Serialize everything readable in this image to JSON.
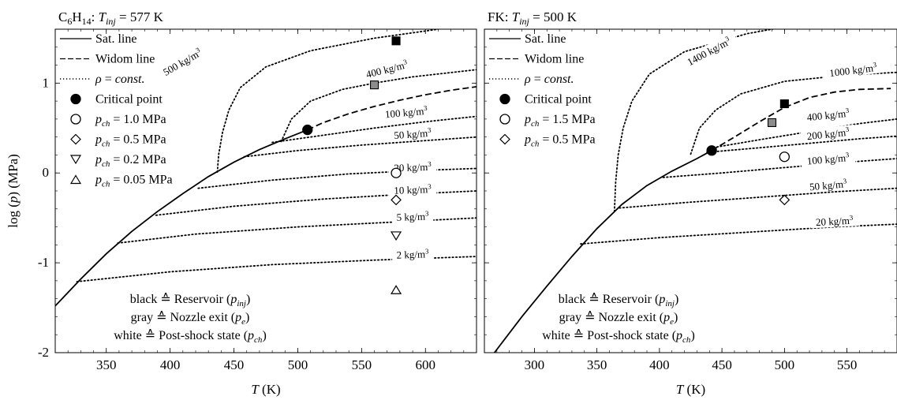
{
  "chart_data": [
    {
      "type": "line",
      "title": "C6H14: Tinj = 577 K",
      "title_parts": {
        "species": "C",
        "sub1": "6",
        "mid": "H",
        "sub2": "14",
        "sep": ": ",
        "var": "T",
        "var_sub": "inj",
        "eq": " = 577 K"
      },
      "xlabel": "T (K)",
      "ylabel": "log (p) (MPa)",
      "xlim": [
        310,
        640
      ],
      "ylim": [
        -2,
        1.6
      ],
      "xticks": [
        "350",
        "400",
        "450",
        "500",
        "550",
        "600"
      ],
      "yticks": [
        "-2",
        "-1",
        "0",
        "1"
      ],
      "legend": [
        "Sat. line",
        "Widom line",
        "ρ = const.",
        "Critical point",
        "pch = 1.0 MPa",
        "pch = 0.5 MPa",
        "pch = 0.2 MPa",
        "pch = 0.05 MPa"
      ],
      "legend_position": "top-left",
      "sat_line": [
        [
          310,
          -1.48
        ],
        [
          330,
          -1.18
        ],
        [
          350,
          -0.9
        ],
        [
          370,
          -0.65
        ],
        [
          390,
          -0.43
        ],
        [
          410,
          -0.23
        ],
        [
          430,
          -0.04
        ],
        [
          450,
          0.12
        ],
        [
          470,
          0.26
        ],
        [
          490,
          0.38
        ],
        [
          507.6,
          0.48
        ]
      ],
      "widom_line": [
        [
          507.6,
          0.48
        ],
        [
          520,
          0.56
        ],
        [
          540,
          0.66
        ],
        [
          560,
          0.74
        ],
        [
          580,
          0.81
        ],
        [
          600,
          0.87
        ],
        [
          620,
          0.92
        ],
        [
          640,
          0.96
        ]
      ],
      "isochores": [
        {
          "label": "500 kg/m3",
          "points": [
            [
              437,
              0.01
            ],
            [
              438,
              0.2
            ],
            [
              441,
              0.45
            ],
            [
              446,
              0.7
            ],
            [
              455,
              0.95
            ],
            [
              475,
              1.18
            ],
            [
              510,
              1.36
            ],
            [
              560,
              1.5
            ],
            [
              610,
              1.6
            ]
          ]
        },
        {
          "label": "400 kg/m3",
          "points": [
            [
              487,
              0.35
            ],
            [
              495,
              0.6
            ],
            [
              510,
              0.8
            ],
            [
              535,
              0.93
            ],
            [
              560,
              1.0
            ],
            [
              590,
              1.07
            ],
            [
              640,
              1.15
            ]
          ]
        },
        {
          "label": "100 kg/m3",
          "points": [
            [
              480,
              0.34
            ],
            [
              520,
              0.42
            ],
            [
              560,
              0.5
            ],
            [
              600,
              0.57
            ],
            [
              640,
              0.63
            ]
          ]
        },
        {
          "label": "50 kg/m3",
          "points": [
            [
              458,
              0.18
            ],
            [
              500,
              0.25
            ],
            [
              550,
              0.31
            ],
            [
              600,
              0.36
            ],
            [
              640,
              0.4
            ]
          ]
        },
        {
          "label": "20 kg/m3",
          "points": [
            [
              422,
              -0.17
            ],
            [
              480,
              -0.08
            ],
            [
              540,
              -0.01
            ],
            [
              600,
              0.03
            ],
            [
              640,
              0.05
            ]
          ]
        },
        {
          "label": "10 kg/m3",
          "points": [
            [
              389,
              -0.47
            ],
            [
              450,
              -0.37
            ],
            [
              520,
              -0.29
            ],
            [
              580,
              -0.24
            ],
            [
              640,
              -0.2
            ]
          ]
        },
        {
          "label": "5 kg/m3",
          "points": [
            [
              359,
              -0.78
            ],
            [
              420,
              -0.68
            ],
            [
              500,
              -0.6
            ],
            [
              570,
              -0.55
            ],
            [
              640,
              -0.5
            ]
          ]
        },
        {
          "label": "2 kg/m3",
          "points": [
            [
              327,
              -1.21
            ],
            [
              400,
              -1.1
            ],
            [
              480,
              -1.02
            ],
            [
              560,
              -0.97
            ],
            [
              640,
              -0.93
            ]
          ]
        }
      ],
      "critical_point": [
        507.6,
        0.48
      ],
      "reservoir": [
        577,
        1.47
      ],
      "nozzle_exit": [
        560,
        0.98
      ],
      "post_shock": [
        {
          "label": "pch = 1.0 MPa",
          "marker": "circle",
          "point": [
            577,
            0.0
          ]
        },
        {
          "label": "pch = 0.5 MPa",
          "marker": "diamond",
          "point": [
            577,
            -0.3
          ]
        },
        {
          "label": "pch = 0.2 MPa",
          "marker": "triangle-down",
          "point": [
            577,
            -0.7
          ]
        },
        {
          "label": "pch = 0.05 MPa",
          "marker": "triangle-up",
          "point": [
            577,
            -1.3
          ]
        }
      ],
      "annotations": [
        "black ≙ Reservoir (pinj)",
        "gray ≙ Nozzle exit (pe)",
        "white ≙ Post-shock state (pch)"
      ]
    },
    {
      "type": "line",
      "title": "FK: Tinj = 500 K",
      "title_parts": {
        "species": "FK",
        "sep": ": ",
        "var": "T",
        "var_sub": "inj",
        "eq": " = 500 K"
      },
      "xlabel": "T (K)",
      "ylabel": "",
      "xlim": [
        260,
        590
      ],
      "ylim": [
        -2,
        1.6
      ],
      "xticks": [
        "300",
        "350",
        "400",
        "450",
        "500",
        "550"
      ],
      "yticks": [],
      "legend": [
        "Sat. line",
        "Widom line",
        "ρ = const.",
        "Critical point",
        "pch = 1.5 MPa",
        "pch = 0.5 MPa"
      ],
      "legend_position": "top-left",
      "sat_line": [
        [
          268,
          -2.0
        ],
        [
          290,
          -1.6
        ],
        [
          310,
          -1.26
        ],
        [
          330,
          -0.93
        ],
        [
          350,
          -0.62
        ],
        [
          370,
          -0.35
        ],
        [
          390,
          -0.14
        ],
        [
          410,
          0.02
        ],
        [
          430,
          0.16
        ],
        [
          441.8,
          0.25
        ]
      ],
      "widom_line": [
        [
          441.8,
          0.25
        ],
        [
          460,
          0.4
        ],
        [
          480,
          0.57
        ],
        [
          500,
          0.73
        ],
        [
          520,
          0.84
        ],
        [
          540,
          0.9
        ],
        [
          560,
          0.93
        ],
        [
          585,
          0.94
        ]
      ],
      "isochores": [
        {
          "label": "1400 kg/m3",
          "points": [
            [
              364,
              -0.43
            ],
            [
              365,
              -0.1
            ],
            [
              367,
              0.2
            ],
            [
              371,
              0.5
            ],
            [
              378,
              0.8
            ],
            [
              392,
              1.1
            ],
            [
              420,
              1.35
            ],
            [
              470,
              1.55
            ],
            [
              510,
              1.65
            ]
          ]
        },
        {
          "label": "1000 kg/m3",
          "points": [
            [
              425,
              0.21
            ],
            [
              432,
              0.5
            ],
            [
              445,
              0.7
            ],
            [
              465,
              0.88
            ],
            [
              500,
              1.02
            ],
            [
              550,
              1.09
            ],
            [
              590,
              1.12
            ]
          ]
        },
        {
          "label": "400 kg/m3",
          "points": [
            [
              446,
              0.29
            ],
            [
              480,
              0.37
            ],
            [
              520,
              0.46
            ],
            [
              560,
              0.55
            ],
            [
              590,
              0.6
            ]
          ]
        },
        {
          "label": "200 kg/m3",
          "points": [
            [
              438,
              0.23
            ],
            [
              480,
              0.28
            ],
            [
              520,
              0.33
            ],
            [
              560,
              0.38
            ],
            [
              590,
              0.41
            ]
          ]
        },
        {
          "label": "100 kg/m3",
          "points": [
            [
              403,
              -0.05
            ],
            [
              450,
              0.0
            ],
            [
              500,
              0.06
            ],
            [
              550,
              0.12
            ],
            [
              590,
              0.16
            ]
          ]
        },
        {
          "label": "50 kg/m3",
          "points": [
            [
              368,
              -0.39
            ],
            [
              420,
              -0.33
            ],
            [
              480,
              -0.27
            ],
            [
              540,
              -0.21
            ],
            [
              590,
              -0.17
            ]
          ]
        },
        {
          "label": "20 kg/m3",
          "points": [
            [
              337,
              -0.79
            ],
            [
              400,
              -0.72
            ],
            [
              470,
              -0.66
            ],
            [
              540,
              -0.6
            ],
            [
              590,
              -0.57
            ]
          ]
        }
      ],
      "critical_point": [
        441.8,
        0.25
      ],
      "reservoir": [
        500,
        0.77
      ],
      "nozzle_exit": [
        490,
        0.56
      ],
      "post_shock": [
        {
          "label": "pch = 1.5 MPa",
          "marker": "circle",
          "point": [
            500,
            0.18
          ]
        },
        {
          "label": "pch = 0.5 MPa",
          "marker": "diamond",
          "point": [
            500,
            -0.3
          ]
        }
      ],
      "annotations": [
        "black ≙ Reservoir (pinj)",
        "gray ≙ Nozzle exit (pe)",
        "white ≙ Post-shock state (pch)"
      ]
    }
  ],
  "legend_labels": {
    "sat": "Sat. line",
    "widom": "Widom line",
    "rho_sym": "ρ",
    "rho_rest": " = ",
    "rho_const": "const.",
    "cp": "Critical point",
    "pch_p": "p",
    "pch_sub": "ch",
    "pch_eq": " = ",
    "left_pch_values": [
      "1.0 MPa",
      "0.5 MPa",
      "0.2 MPa",
      "0.05 MPa"
    ],
    "right_pch_values": [
      "1.5 MPa",
      "0.5 MPa"
    ]
  },
  "annotation_parts": [
    {
      "color": "black",
      "sym": " ≙ ",
      "label": "Reservoir (",
      "var": "p",
      "sub": "inj",
      "close": ")"
    },
    {
      "color": "gray",
      "sym": " ≙ ",
      "label": "Nozzle exit (",
      "var": "p",
      "sub": "e",
      "close": ")"
    },
    {
      "color": "white",
      "sym": " ≙ ",
      "label": "Post-shock state (",
      "var": "p",
      "sub": "ch",
      "close": ")"
    }
  ],
  "axis_text": {
    "T": "T",
    "K": " (K)",
    "ylabel_log": "log (",
    "ylabel_p": "p",
    "ylabel_end": ") (MPa)"
  },
  "isochore_units": {
    "base": "kg/m",
    "exp": "3"
  },
  "colors": {
    "line": "#000000",
    "gray_marker": "#8c8c8c",
    "white_marker": "#ffffff"
  }
}
